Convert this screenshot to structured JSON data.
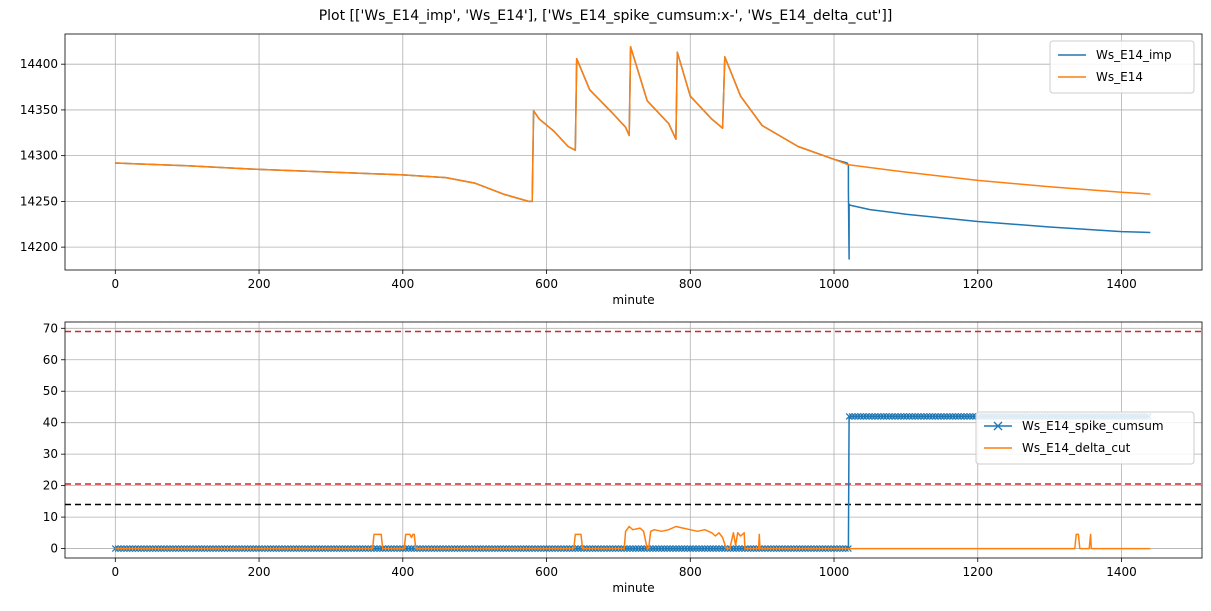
{
  "figure": {
    "title": "Plot [['Ws_E14_imp', 'Ws_E14'], ['Ws_E14_spike_cumsum:x-', 'Ws_E14_delta_cut']]"
  },
  "colors": {
    "blue": "#1f77b4",
    "orange": "#ff7f0e",
    "red": "#d62728",
    "black": "#000000",
    "grid": "#b0b0b0"
  },
  "chart_data": [
    {
      "type": "line",
      "xlabel": "minute",
      "ylabel": "",
      "xlim": [
        -70,
        1512
      ],
      "ylim": [
        14175,
        14433
      ],
      "xticks": [
        0,
        200,
        400,
        600,
        800,
        1000,
        1200,
        1400
      ],
      "yticks": [
        14200,
        14250,
        14300,
        14350,
        14400
      ],
      "grid": true,
      "legend_position": "top-right",
      "series": [
        {
          "name": "Ws_E14_imp",
          "color": "#1f77b4",
          "x": [
            0,
            100,
            200,
            300,
            400,
            460,
            500,
            540,
            575,
            580,
            582,
            590,
            610,
            630,
            640,
            642,
            660,
            690,
            710,
            715,
            717,
            740,
            770,
            780,
            782,
            800,
            830,
            845,
            848,
            870,
            900,
            950,
            1000,
            1018,
            1020,
            1020,
            1021,
            1021,
            1022,
            1050,
            1100,
            1200,
            1300,
            1400,
            1440
          ],
          "y": [
            14292,
            14289,
            14285,
            14282,
            14279,
            14276,
            14270,
            14258,
            14250,
            14250,
            14349,
            14340,
            14327,
            14310,
            14306,
            14406,
            14372,
            14348,
            14331,
            14322,
            14419,
            14360,
            14335,
            14318,
            14413,
            14365,
            14340,
            14330,
            14408,
            14365,
            14333,
            14310,
            14296,
            14292,
            14290,
            14262,
            14187,
            14247,
            14246,
            14241,
            14236,
            14228,
            14222,
            14217,
            14216
          ]
        },
        {
          "name": "Ws_E14",
          "color": "#ff7f0e",
          "x": [
            0,
            100,
            200,
            300,
            400,
            460,
            500,
            540,
            575,
            580,
            582,
            590,
            610,
            630,
            640,
            642,
            660,
            690,
            710,
            715,
            717,
            740,
            770,
            780,
            782,
            800,
            830,
            845,
            848,
            870,
            900,
            950,
            1000,
            1020,
            1100,
            1200,
            1300,
            1400,
            1440
          ],
          "y": [
            14292,
            14289,
            14285,
            14282,
            14279,
            14276,
            14270,
            14258,
            14250,
            14250,
            14349,
            14340,
            14327,
            14310,
            14306,
            14406,
            14372,
            14348,
            14331,
            14322,
            14419,
            14360,
            14335,
            14318,
            14413,
            14365,
            14340,
            14330,
            14408,
            14365,
            14333,
            14310,
            14296,
            14290,
            14282,
            14273,
            14266,
            14260,
            14258
          ]
        }
      ]
    },
    {
      "type": "line",
      "xlabel": "minute",
      "ylabel": "",
      "xlim": [
        -70,
        1512
      ],
      "ylim": [
        -3,
        72
      ],
      "xticks": [
        0,
        200,
        400,
        600,
        800,
        1000,
        1200,
        1400
      ],
      "yticks": [
        0,
        10,
        20,
        30,
        40,
        50,
        60,
        70
      ],
      "grid": true,
      "legend_position": "center-right",
      "hlines": [
        {
          "y": 69,
          "color": "#d62728",
          "style": "dashed"
        },
        {
          "y": 20.5,
          "color": "#d62728",
          "style": "dashed"
        },
        {
          "y": 14,
          "color": "#000000",
          "style": "dashed"
        }
      ],
      "series": [
        {
          "name": "Ws_E14_spike_cumsum",
          "marker": "x",
          "color": "#1f77b4",
          "x": [
            0,
            1020,
            1021,
            1440
          ],
          "y": [
            0,
            0,
            42,
            42
          ]
        },
        {
          "name": "Ws_E14_delta_cut",
          "color": "#ff7f0e",
          "x": [
            0,
            358,
            360,
            370,
            372,
            402,
            404,
            410,
            412,
            414,
            416,
            418,
            638,
            640,
            648,
            650,
            708,
            710,
            715,
            720,
            730,
            735,
            740,
            742,
            745,
            750,
            760,
            770,
            780,
            790,
            800,
            810,
            820,
            830,
            835,
            840,
            845,
            850,
            855,
            860,
            863,
            866,
            870,
            875,
            876,
            895,
            896,
            897,
            1335,
            1337,
            1340,
            1342,
            1355,
            1357,
            1358,
            1440
          ],
          "y": [
            0,
            0,
            4.5,
            4.5,
            0,
            0,
            4.5,
            4.5,
            3.5,
            4.5,
            4.5,
            0,
            0,
            4.5,
            4.5,
            0,
            0,
            5.5,
            7,
            6,
            6.5,
            5.5,
            0,
            0,
            5.5,
            6,
            5.5,
            6,
            7,
            6.5,
            6,
            5.5,
            6,
            5,
            4,
            5,
            3.5,
            0,
            0,
            5,
            1,
            5,
            4,
            5,
            0,
            0,
            4.5,
            0,
            0,
            4.5,
            4.5,
            0,
            0,
            4.5,
            0,
            0
          ]
        }
      ]
    }
  ]
}
